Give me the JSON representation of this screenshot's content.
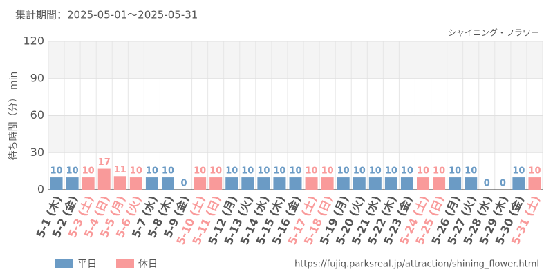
{
  "chart_data": {
    "type": "bar",
    "title": "集計期間：2025-05-01～2025-05-31",
    "subtitle": "シャイニング・フラワー",
    "y_label": "待ち時間（分） min",
    "source": "https://fujiq.parksreal.jp/attraction/shining_flower.html",
    "categories": [
      "5-1 (木)",
      "5-2 (金)",
      "5-3 (土)",
      "5-4 (日)",
      "5-5 (月)",
      "5-6 (火)",
      "5-7 (水)",
      "5-8 (木)",
      "5-9 (金)",
      "5-10 (土)",
      "5-11 (日)",
      "5-12 (月)",
      "5-13 (火)",
      "5-14 (水)",
      "5-15 (木)",
      "5-16 (金)",
      "5-17 (土)",
      "5-18 (日)",
      "5-19 (月)",
      "5-20 (火)",
      "5-21 (水)",
      "5-22 (木)",
      "5-23 (金)",
      "5-24 (土)",
      "5-25 (日)",
      "5-26 (月)",
      "5-27 (火)",
      "5-28 (水)",
      "5-29 (木)",
      "5-30 (金)",
      "5-31 (土)"
    ],
    "series": [
      {
        "name": "平日",
        "color": "#6b9bc5",
        "values": [
          10,
          10,
          null,
          null,
          null,
          null,
          10,
          10,
          0,
          null,
          null,
          10,
          10,
          10,
          10,
          10,
          null,
          null,
          10,
          10,
          10,
          10,
          10,
          null,
          null,
          10,
          10,
          0,
          0,
          10,
          null
        ]
      },
      {
        "name": "休日",
        "color": "#f99a9a",
        "values": [
          null,
          null,
          10,
          17,
          11,
          10,
          null,
          null,
          null,
          10,
          10,
          null,
          null,
          null,
          null,
          null,
          10,
          10,
          null,
          null,
          null,
          null,
          null,
          10,
          10,
          null,
          null,
          null,
          null,
          null,
          10
        ]
      }
    ],
    "ylim": [
      0,
      120
    ],
    "yticks": [
      0,
      30,
      60,
      90,
      120
    ],
    "grid": true,
    "legend": "bottom-left"
  }
}
